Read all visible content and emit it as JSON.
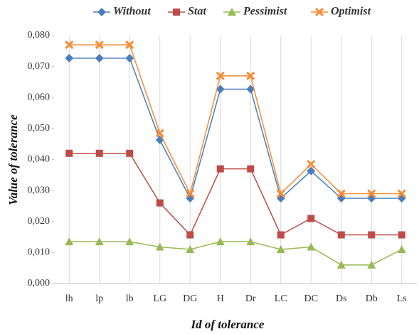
{
  "chart_data": {
    "type": "line",
    "y_label": "Value of tolerance",
    "x_label": "Id of tolerance",
    "categories": [
      "lh",
      "lp",
      "lb",
      "LG",
      "DG",
      "H",
      "Dr",
      "LC",
      "DC",
      "Ds",
      "Db",
      "Ls"
    ],
    "series": [
      {
        "name": "Without",
        "color": "#4a7ebb",
        "marker": "diamond",
        "values": [
          0.0727,
          0.0727,
          0.0727,
          0.0463,
          0.0275,
          0.0627,
          0.0627,
          0.0275,
          0.0363,
          0.0275,
          0.0275,
          0.0275
        ]
      },
      {
        "name": "Stat",
        "color": "#be4b48",
        "marker": "square",
        "values": [
          0.042,
          0.042,
          0.042,
          0.026,
          0.0157,
          0.037,
          0.037,
          0.0157,
          0.021,
          0.0157,
          0.0157,
          0.0157
        ]
      },
      {
        "name": "Pessimist",
        "color": "#98b954",
        "marker": "triangle",
        "values": [
          0.0135,
          0.0135,
          0.0135,
          0.0118,
          0.011,
          0.0135,
          0.0135,
          0.011,
          0.0118,
          0.006,
          0.006,
          0.011
        ]
      },
      {
        "name": "Optimist",
        "color": "#f68c36",
        "marker": "x",
        "values": [
          0.077,
          0.077,
          0.077,
          0.0485,
          0.029,
          0.067,
          0.067,
          0.029,
          0.0385,
          0.029,
          0.029,
          0.029
        ]
      }
    ],
    "ylim": [
      0,
      0.08
    ],
    "yticks": [
      {
        "value": 0,
        "label": "0,000"
      },
      {
        "value": 0.01,
        "label": "0,010"
      },
      {
        "value": 0.02,
        "label": "0,020"
      },
      {
        "value": 0.03,
        "label": "0,030"
      },
      {
        "value": 0.04,
        "label": "0,040"
      },
      {
        "value": 0.05,
        "label": "0,050"
      },
      {
        "value": 0.06,
        "label": "0,060"
      },
      {
        "value": 0.07,
        "label": "0,070"
      },
      {
        "value": 0.08,
        "label": "0,080"
      }
    ],
    "grid": "x",
    "legend": "top"
  }
}
